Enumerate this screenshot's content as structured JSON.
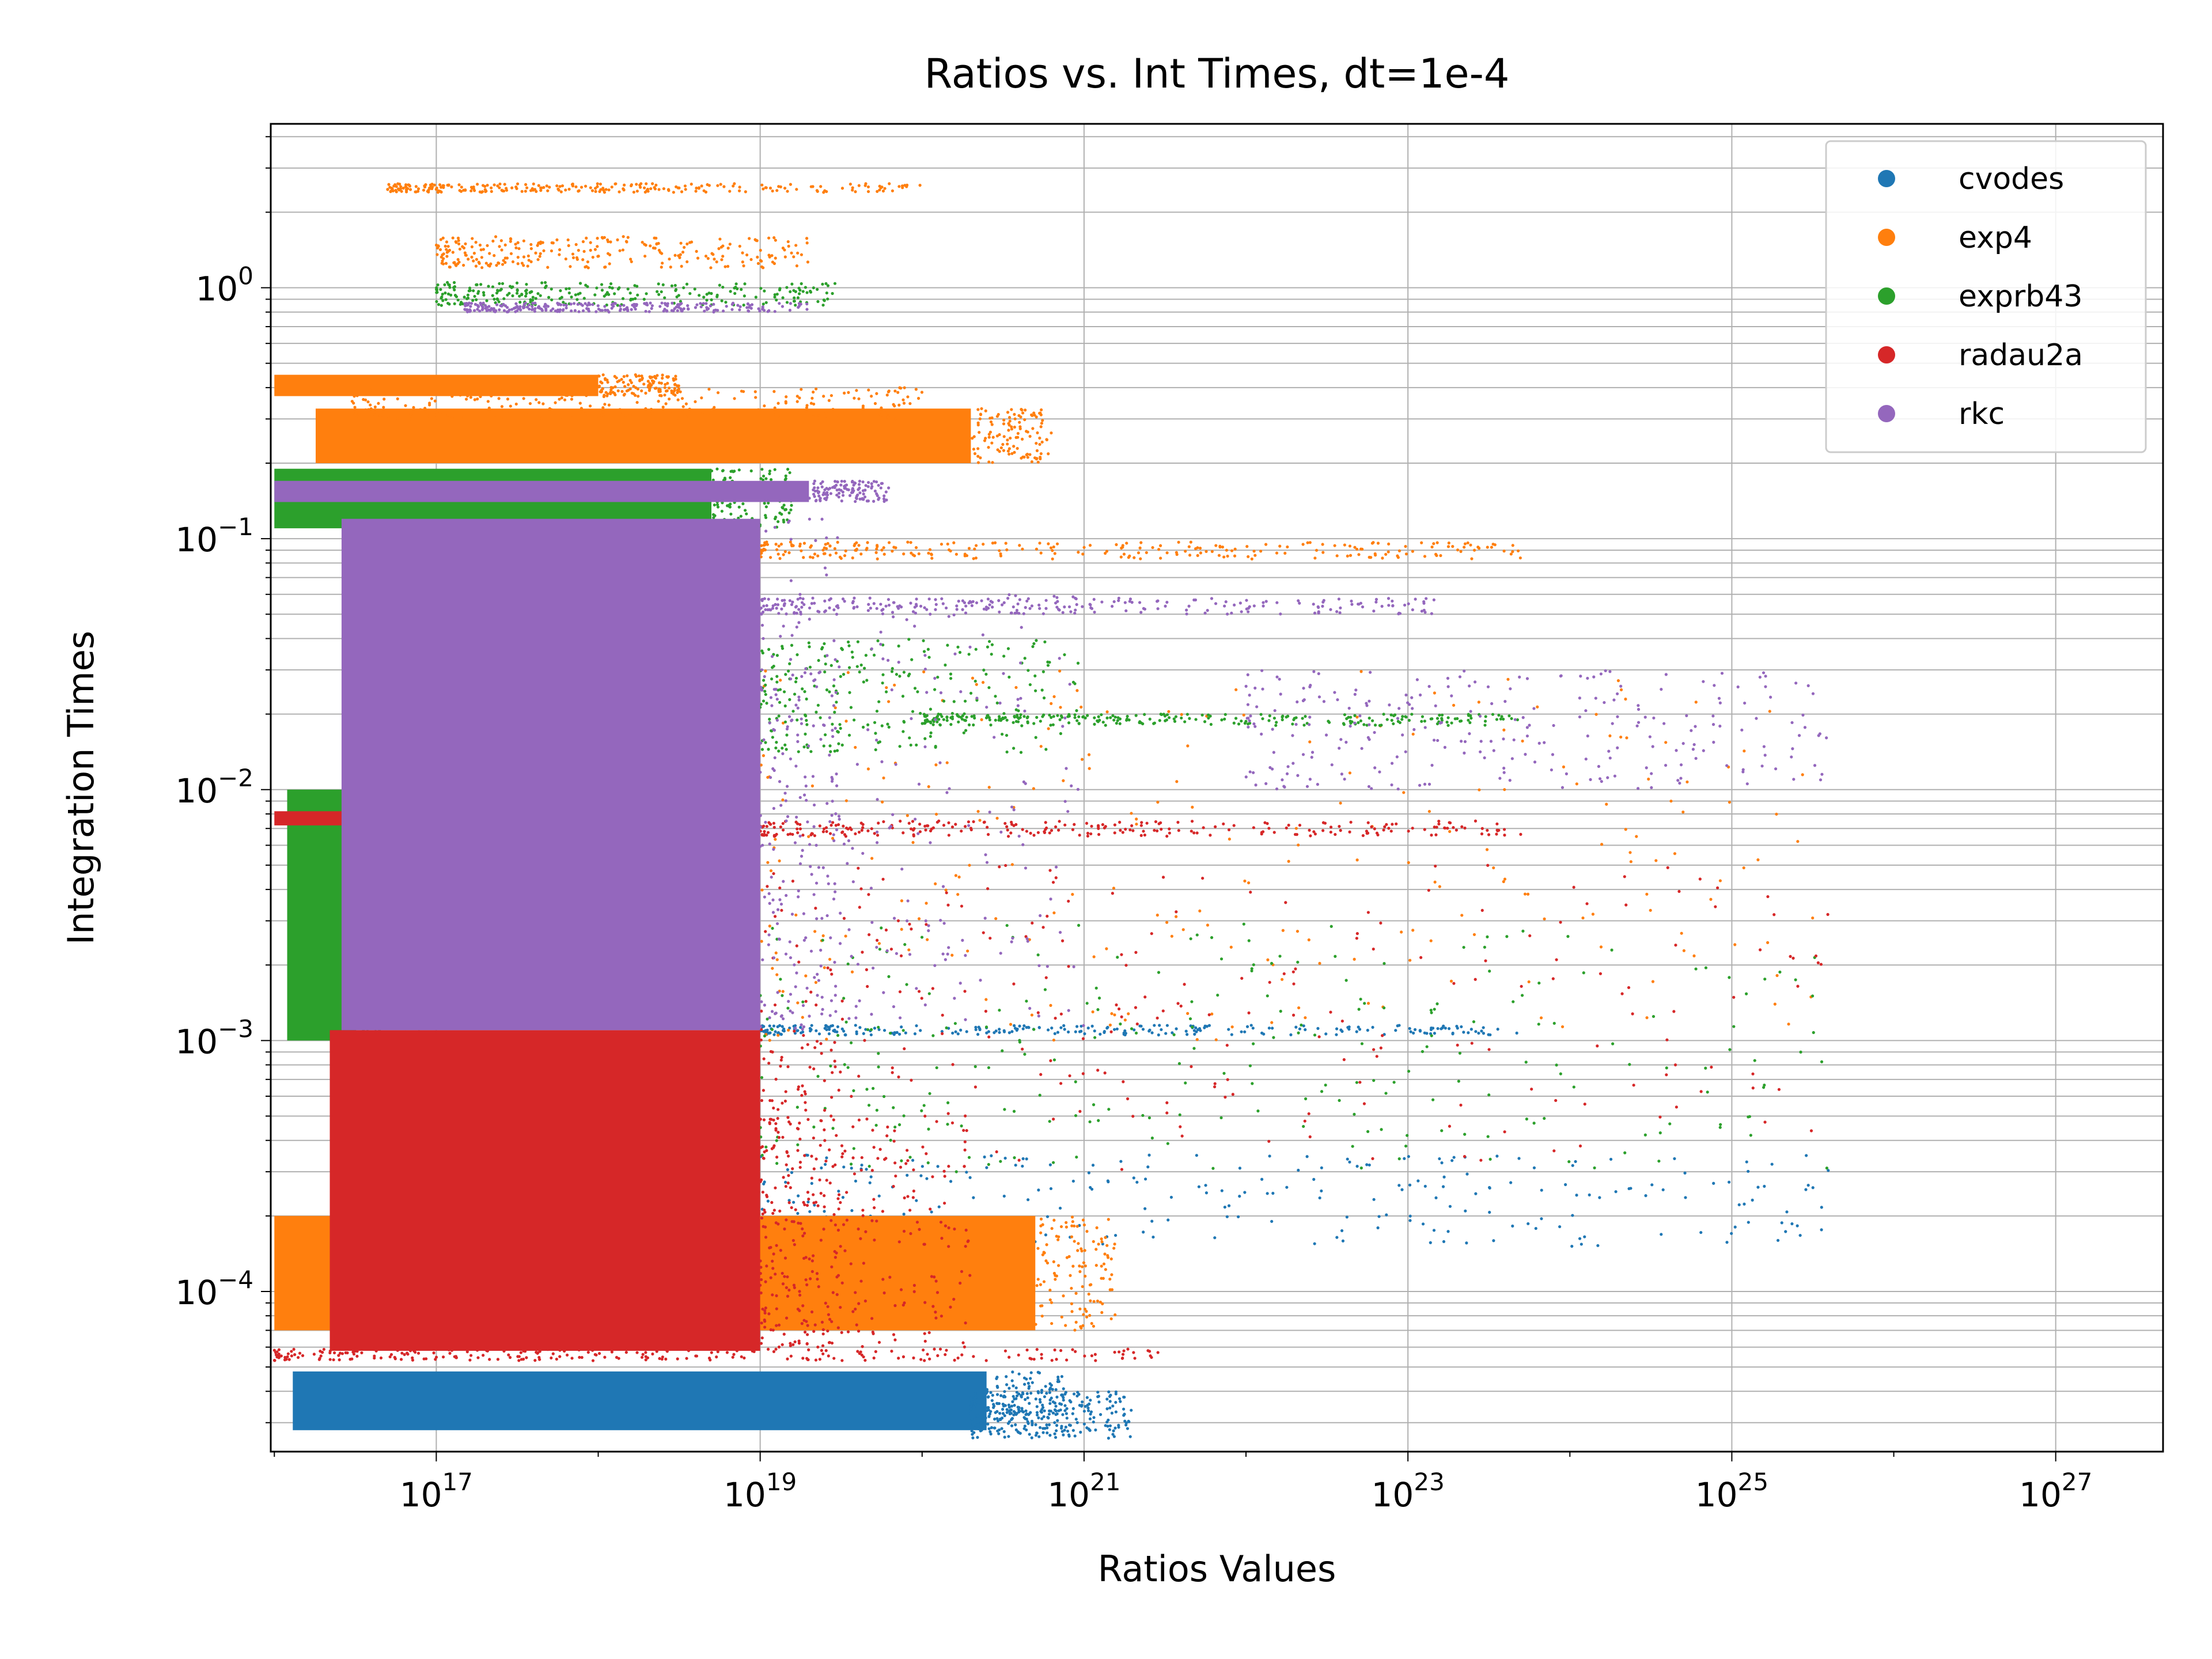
{
  "chart_data": {
    "type": "scatter",
    "title": "Ratios vs. Int Times, dt=1e-4",
    "xlabel": "Ratios Values",
    "ylabel": "Integration Times",
    "xscale": "log",
    "yscale": "log",
    "xlim": [
      9500000000000000.0,
      4.6e+27
    ],
    "ylim": [
      2.3e-05,
      4.5
    ],
    "grid": true,
    "legend_position": "top-right",
    "x_ticks": [
      {
        "exp": 17,
        "label": "10",
        "sup": "17"
      },
      {
        "exp": 19,
        "label": "10",
        "sup": "19"
      },
      {
        "exp": 21,
        "label": "10",
        "sup": "21"
      },
      {
        "exp": 23,
        "label": "10",
        "sup": "23"
      },
      {
        "exp": 25,
        "label": "10",
        "sup": "25"
      },
      {
        "exp": 27,
        "label": "10",
        "sup": "27"
      }
    ],
    "y_ticks": [
      {
        "exp": 0,
        "label": "10",
        "sup": "0"
      },
      {
        "exp": -1,
        "label": "10",
        "sup": "−1"
      },
      {
        "exp": -2,
        "label": "10",
        "sup": "−2"
      },
      {
        "exp": -3,
        "label": "10",
        "sup": "−3"
      },
      {
        "exp": -4,
        "label": "10",
        "sup": "−4"
      }
    ],
    "series": [
      {
        "name": "cvodes",
        "color": "#1f77b4",
        "clusters": [
          {
            "x": [
              1.3e+16,
              2.5e+20
            ],
            "y": [
              2.8e-05,
              4.8e-05
            ],
            "dense": true
          },
          {
            "x": [
              2e+20,
              2e+21
            ],
            "y": [
              2.6e-05,
              4e-05
            ],
            "dense": false
          },
          {
            "x": [
              1e+19,
              5e+23
            ],
            "y": [
              0.00105,
              0.00115
            ],
            "dense": false
          },
          {
            "x": [
              1e+19,
              4e+25
            ],
            "y": [
              0.00015,
              0.00035
            ],
            "dense": false
          }
        ]
      },
      {
        "name": "exp4",
        "color": "#ff7f0e",
        "clusters": [
          {
            "x": [
              1.8e+16,
              2e+20
            ],
            "y": [
              0.2,
              0.33
            ],
            "dense": true
          },
          {
            "x": [
              1e+16,
              1e+18
            ],
            "y": [
              0.37,
              0.45
            ],
            "dense": true
          },
          {
            "x": [
              3e+16,
              1e+20
            ],
            "y": [
              0.3,
              0.4
            ],
            "dense": false
          },
          {
            "x": [
              5e+16,
              1e+20
            ],
            "y": [
              2.4,
              2.6
            ],
            "dense": false
          },
          {
            "x": [
              1e+17,
              2e+19
            ],
            "y": [
              1.2,
              1.6
            ],
            "dense": false
          },
          {
            "x": [
              1e+19,
              5e+23
            ],
            "y": [
              0.083,
              0.097
            ],
            "dense": false
          },
          {
            "x": [
              1e+16,
              5e+20
            ],
            "y": [
              7e-05,
              0.0002
            ],
            "dense": true
          },
          {
            "x": [
              1e+19,
              4e+25
            ],
            "y": [
              0.001,
              0.03
            ],
            "dense": false
          }
        ]
      },
      {
        "name": "exprb43",
        "color": "#2ca02c",
        "clusters": [
          {
            "x": [
              1e+16,
              5e+18
            ],
            "y": [
              0.11,
              0.19
            ],
            "dense": true
          },
          {
            "x": [
              1e+17,
              3e+19
            ],
            "y": [
              0.85,
              1.05
            ],
            "dense": false
          },
          {
            "x": [
              1.2e+16,
              3.2e+16
            ],
            "y": [
              0.001,
              0.01
            ],
            "dense": true
          },
          {
            "x": [
              1e+19,
              1e+21
            ],
            "y": [
              0.014,
              0.04
            ],
            "dense": false
          },
          {
            "x": [
              1e+20,
              5e+23
            ],
            "y": [
              0.018,
              0.02
            ],
            "dense": false
          },
          {
            "x": [
              1e+19,
              4e+25
            ],
            "y": [
              0.0003,
              0.003
            ],
            "dense": false
          }
        ]
      },
      {
        "name": "radau2a",
        "color": "#d62728",
        "clusters": [
          {
            "x": [
              2.2e+16,
              1e+19
            ],
            "y": [
              5.8e-05,
              0.0011
            ],
            "dense": true
          },
          {
            "x": [
              1e+19,
              2e+20
            ],
            "y": [
              6e-05,
              0.0005
            ],
            "dense": false
          },
          {
            "x": [
              1e+16,
              3e+21
            ],
            "y": [
              5.3e-05,
              5.9e-05
            ],
            "dense": false
          },
          {
            "x": [
              1e+16,
              3.5e+16
            ],
            "y": [
              0.0072,
              0.0082
            ],
            "dense": true
          },
          {
            "x": [
              1e+19,
              5e+23
            ],
            "y": [
              0.0065,
              0.0075
            ],
            "dense": false
          },
          {
            "x": [
              1e+19,
              4e+25
            ],
            "y": [
              0.0003,
              0.005
            ],
            "dense": false
          }
        ]
      },
      {
        "name": "rkc",
        "color": "#9467bd",
        "clusters": [
          {
            "x": [
              2.6e+16,
              1e+19
            ],
            "y": [
              0.0011,
              0.12
            ],
            "dense": true
          },
          {
            "x": [
              1e+19,
              1e+21
            ],
            "y": [
              0.0011,
              0.06
            ],
            "dense": false
          },
          {
            "x": [
              1e+16,
              2e+19
            ],
            "y": [
              0.14,
              0.17
            ],
            "dense": true
          },
          {
            "x": [
              1.5e+17,
              2e+19
            ],
            "y": [
              0.8,
              0.87
            ],
            "dense": false
          },
          {
            "x": [
              1e+19,
              1.5e+23
            ],
            "y": [
              0.05,
              0.058
            ],
            "dense": false
          },
          {
            "x": [
              1e+22,
              4e+25
            ],
            "y": [
              0.01,
              0.03
            ],
            "dense": false
          }
        ]
      }
    ]
  }
}
